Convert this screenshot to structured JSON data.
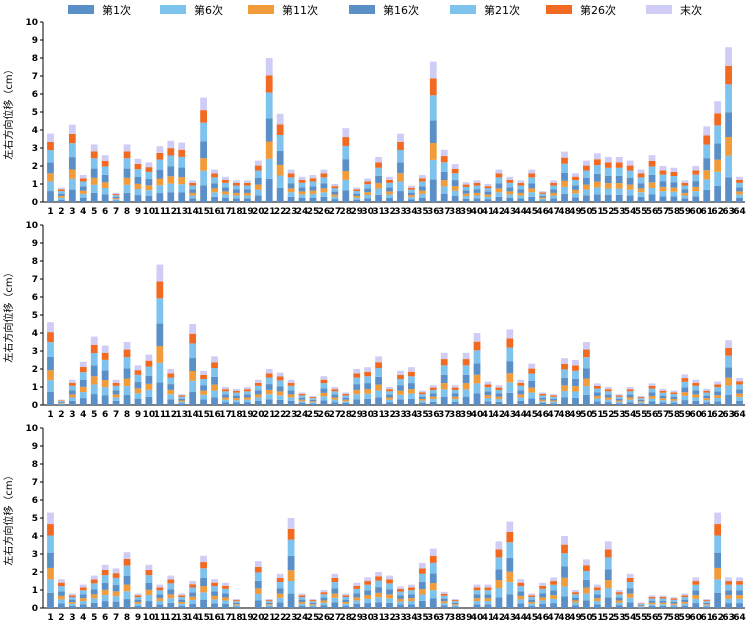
{
  "chart_data": [
    {
      "type": "bar",
      "stacked": true,
      "ylabel": "左右方向位移（cm）",
      "ylim": [
        0,
        10
      ],
      "yticks": [
        0,
        1,
        2,
        3,
        4,
        5,
        6,
        7,
        8,
        9,
        10
      ],
      "categories": [
        "1",
        "2",
        "3",
        "4",
        "5",
        "6",
        "7",
        "8",
        "9",
        "10",
        "11",
        "12",
        "13",
        "14",
        "15",
        "16",
        "17",
        "18",
        "19",
        "20",
        "21",
        "22",
        "23",
        "24",
        "25",
        "26",
        "27",
        "28",
        "29",
        "30",
        "31",
        "32",
        "33",
        "34",
        "35",
        "36",
        "37",
        "38",
        "39",
        "40",
        "41",
        "42",
        "43",
        "44",
        "45",
        "46",
        "47",
        "48",
        "49",
        "50",
        "51",
        "52",
        "53",
        "54",
        "55",
        "56",
        "57",
        "58",
        "59",
        "60",
        "61",
        "62",
        "63",
        "64"
      ],
      "series": [
        {
          "name": "第1次",
          "color": "#5b8fc7"
        },
        {
          "name": "第6次",
          "color": "#7ec3ee"
        },
        {
          "name": "第11次",
          "color": "#f29b3a"
        },
        {
          "name": "第16次",
          "color": "#5b8fc7"
        },
        {
          "name": "第21次",
          "color": "#7ec3ee"
        },
        {
          "name": "第26次",
          "color": "#f26a21"
        },
        {
          "name": "末次",
          "color": "#cfcdf5"
        }
      ],
      "totals": [
        3.8,
        0.8,
        4.3,
        1.5,
        3.2,
        2.6,
        0.5,
        3.2,
        2.4,
        2.2,
        3.1,
        3.4,
        3.3,
        1.2,
        5.8,
        1.8,
        1.4,
        1.2,
        1.2,
        2.3,
        8.0,
        4.9,
        1.8,
        1.4,
        1.5,
        1.8,
        1.0,
        4.1,
        0.8,
        1.3,
        2.5,
        1.4,
        3.8,
        0.9,
        1.5,
        7.8,
        2.9,
        2.1,
        1.1,
        1.2,
        1.0,
        1.8,
        1.4,
        1.2,
        1.8,
        0.6,
        1.2,
        2.8,
        1.6,
        2.3,
        2.7,
        2.5,
        2.5,
        2.3,
        1.8,
        2.6,
        2.0,
        1.9,
        1.2,
        2.0,
        4.2,
        5.6,
        8.6,
        1.4
      ]
    },
    {
      "type": "bar",
      "stacked": true,
      "ylabel": "左右方向位移（cm）",
      "ylim": [
        0,
        10
      ],
      "yticks": [
        0,
        1,
        2,
        3,
        4,
        5,
        6,
        7,
        8,
        9,
        10
      ],
      "categories": [
        "1",
        "2",
        "3",
        "4",
        "5",
        "6",
        "7",
        "8",
        "9",
        "10",
        "11",
        "12",
        "13",
        "14",
        "15",
        "16",
        "17",
        "18",
        "19",
        "20",
        "21",
        "22",
        "23",
        "24",
        "25",
        "26",
        "27",
        "28",
        "29",
        "30",
        "31",
        "32",
        "33",
        "34",
        "35",
        "36",
        "37",
        "38",
        "39",
        "40",
        "41",
        "42",
        "43",
        "44",
        "45",
        "46",
        "47",
        "48",
        "49",
        "50",
        "51",
        "52",
        "53",
        "54",
        "55",
        "56",
        "57",
        "58",
        "59",
        "60",
        "61",
        "62",
        "63",
        "64"
      ],
      "series": [
        {
          "name": "第1次",
          "color": "#5b8fc7"
        },
        {
          "name": "第6次",
          "color": "#7ec3ee"
        },
        {
          "name": "第11次",
          "color": "#f29b3a"
        },
        {
          "name": "第16次",
          "color": "#5b8fc7"
        },
        {
          "name": "第21次",
          "color": "#7ec3ee"
        },
        {
          "name": "第26次",
          "color": "#f26a21"
        },
        {
          "name": "末次",
          "color": "#cfcdf5"
        }
      ],
      "totals": [
        4.6,
        0.3,
        1.4,
        2.4,
        3.8,
        3.3,
        1.4,
        3.5,
        2.2,
        2.8,
        7.8,
        2.0,
        0.6,
        4.5,
        1.9,
        2.7,
        1.0,
        0.9,
        1.0,
        1.4,
        2.0,
        1.8,
        1.4,
        0.7,
        0.5,
        1.6,
        1.0,
        0.7,
        2.0,
        2.1,
        2.7,
        1.0,
        1.9,
        2.1,
        0.8,
        1.1,
        2.9,
        1.1,
        2.9,
        4.0,
        1.3,
        1.1,
        4.2,
        1.4,
        2.3,
        0.7,
        0.6,
        2.6,
        2.5,
        3.5,
        1.2,
        1.0,
        0.6,
        1.0,
        0.5,
        1.2,
        0.9,
        0.8,
        1.7,
        1.4,
        0.9,
        1.3,
        3.6,
        1.5
      ]
    },
    {
      "type": "bar",
      "stacked": true,
      "ylabel": "左右方向位移（cm）",
      "ylim": [
        0,
        10
      ],
      "yticks": [
        0,
        1,
        2,
        3,
        4,
        5,
        6,
        7,
        8,
        9,
        10
      ],
      "categories": [
        "1",
        "2",
        "3",
        "4",
        "5",
        "6",
        "7",
        "8",
        "9",
        "10",
        "11",
        "12",
        "13",
        "14",
        "15",
        "16",
        "17",
        "18",
        "19",
        "20",
        "21",
        "22",
        "23",
        "24",
        "25",
        "26",
        "27",
        "28",
        "29",
        "30",
        "31",
        "32",
        "33",
        "34",
        "35",
        "36",
        "37",
        "38",
        "39",
        "40",
        "41",
        "42",
        "43",
        "44",
        "45",
        "46",
        "47",
        "48",
        "49",
        "50",
        "51",
        "52",
        "53",
        "54",
        "55",
        "56",
        "57",
        "58",
        "59",
        "60",
        "61",
        "62",
        "63",
        "64"
      ],
      "series": [
        {
          "name": "第1次",
          "color": "#5b8fc7"
        },
        {
          "name": "第6次",
          "color": "#7ec3ee"
        },
        {
          "name": "第11次",
          "color": "#f29b3a"
        },
        {
          "name": "第16次",
          "color": "#5b8fc7"
        },
        {
          "name": "第21次",
          "color": "#7ec3ee"
        },
        {
          "name": "第26次",
          "color": "#f26a21"
        },
        {
          "name": "末次",
          "color": "#cfcdf5"
        }
      ],
      "totals": [
        5.3,
        1.6,
        0.8,
        1.3,
        1.8,
        2.4,
        2.2,
        3.1,
        0.8,
        2.4,
        1.3,
        1.8,
        0.8,
        1.5,
        2.9,
        1.6,
        1.4,
        0.5,
        0.0,
        2.6,
        0.5,
        1.9,
        5.0,
        0.8,
        0.5,
        1.0,
        1.9,
        0.8,
        1.4,
        1.7,
        2.0,
        1.8,
        1.2,
        1.3,
        2.5,
        3.3,
        0.9,
        0.5,
        0.0,
        1.3,
        1.3,
        3.7,
        4.8,
        1.6,
        0.8,
        1.4,
        1.7,
        4.0,
        1.0,
        2.7,
        1.3,
        3.7,
        1.0,
        1.9,
        0.3,
        0.7,
        0.7,
        0.6,
        0.8,
        1.7,
        0.5,
        5.3,
        1.7,
        1.7
      ]
    }
  ],
  "legend": [
    {
      "label": "第1次",
      "color": "#5b8fc7"
    },
    {
      "label": "第6次",
      "color": "#7ec3ee"
    },
    {
      "label": "第11次",
      "color": "#f29b3a"
    },
    {
      "label": "第16次",
      "color": "#5b8fc7"
    },
    {
      "label": "第21次",
      "color": "#7ec3ee"
    },
    {
      "label": "第26次",
      "color": "#f26a21"
    },
    {
      "label": "末次",
      "color": "#cfcdf5"
    }
  ]
}
